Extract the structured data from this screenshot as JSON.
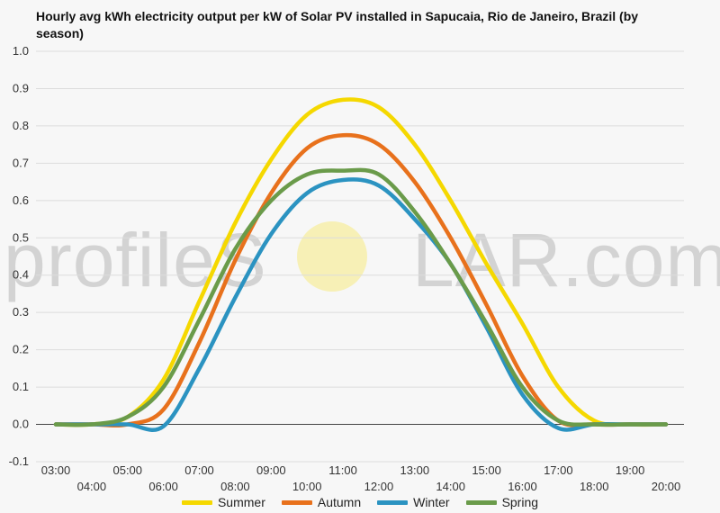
{
  "chart_data": {
    "type": "line",
    "title": "Hourly avg kWh electricity output per kW of Solar PV installed in Sapucaia, Rio de Janeiro, Brazil (by season)",
    "xlabel": "",
    "ylabel": "",
    "x": [
      "03:00",
      "04:00",
      "05:00",
      "06:00",
      "07:00",
      "08:00",
      "09:00",
      "10:00",
      "11:00",
      "12:00",
      "13:00",
      "14:00",
      "15:00",
      "16:00",
      "17:00",
      "18:00",
      "19:00",
      "20:00"
    ],
    "ylim": [
      -0.1,
      1.0
    ],
    "yticks": [
      "1.0",
      "0.9",
      "0.8",
      "0.7",
      "0.6",
      "0.5",
      "0.4",
      "0.3",
      "0.2",
      "0.1",
      "0.0",
      "-0.1"
    ],
    "grid": true,
    "legend_position": "bottom",
    "series": [
      {
        "name": "Summer",
        "color": "#f5d800",
        "values": [
          0,
          0,
          0.02,
          0.12,
          0.33,
          0.54,
          0.71,
          0.83,
          0.87,
          0.85,
          0.75,
          0.6,
          0.43,
          0.27,
          0.1,
          0.01,
          0,
          0
        ]
      },
      {
        "name": "Autumn",
        "color": "#e8711c",
        "values": [
          0,
          0,
          0,
          0.04,
          0.22,
          0.44,
          0.62,
          0.74,
          0.775,
          0.75,
          0.65,
          0.5,
          0.32,
          0.13,
          0.01,
          0,
          0,
          0
        ]
      },
      {
        "name": "Winter",
        "color": "#2b93c1",
        "values": [
          0,
          0,
          0,
          -0.005,
          0.15,
          0.34,
          0.51,
          0.62,
          0.655,
          0.64,
          0.55,
          0.43,
          0.26,
          0.08,
          -0.01,
          0,
          0,
          0
        ]
      },
      {
        "name": "Spring",
        "color": "#6a9b4a",
        "values": [
          0,
          0,
          0.02,
          0.1,
          0.28,
          0.47,
          0.6,
          0.67,
          0.68,
          0.67,
          0.57,
          0.43,
          0.27,
          0.1,
          0.01,
          0,
          0,
          0
        ]
      }
    ]
  },
  "watermark": {
    "pre": "profileS",
    "post": "LAR.com"
  }
}
